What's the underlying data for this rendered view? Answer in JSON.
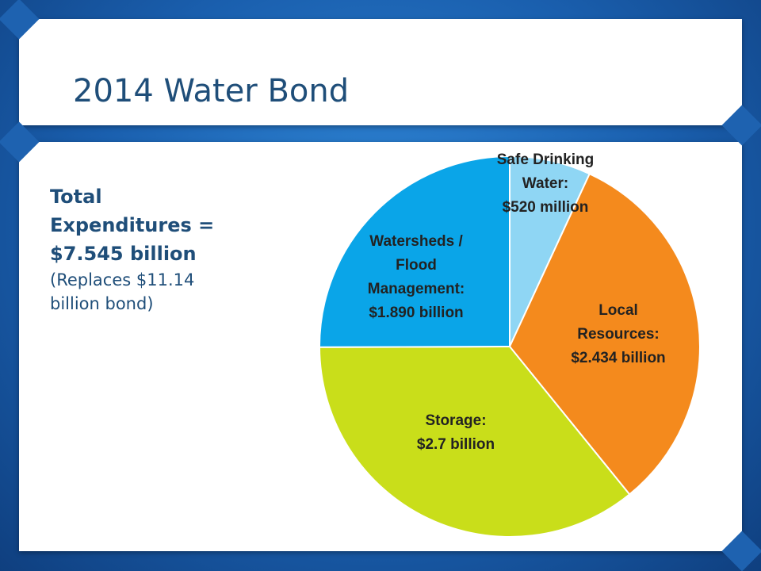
{
  "slide": {
    "title": "2014 Water Bond",
    "total_line1": "Total",
    "total_line2": "Expenditures =",
    "total_line3": "$7.545 billion",
    "note_line1": "(Replaces $11.14",
    "note_line2": "billion bond)"
  },
  "colors": {
    "background": "#1a5fae",
    "title": "#1f4e79",
    "safe_drinking_water": "#8fd6f4",
    "local_resources": "#f48a1d",
    "storage": "#c9de1a",
    "watersheds": "#0aa5e8"
  },
  "chart_data": {
    "type": "pie",
    "title": "",
    "slices": [
      {
        "name": "Safe Drinking Water",
        "value": 0.52,
        "label_lines": [
          "Safe Drinking",
          "Water:",
          "$520 million"
        ],
        "color": "#8fd6f4"
      },
      {
        "name": "Local Resources",
        "value": 2.434,
        "label_lines": [
          "Local",
          "Resources:",
          "$2.434 billion"
        ],
        "color": "#f48a1d"
      },
      {
        "name": "Storage",
        "value": 2.7,
        "label_lines": [
          "Storage:",
          "$2.7 billion"
        ],
        "color": "#c9de1a"
      },
      {
        "name": "Watersheds / Flood Management",
        "value": 1.89,
        "label_lines": [
          "Watersheds /",
          "Flood",
          "Management:",
          "$1.890 billion"
        ],
        "color": "#0aa5e8"
      }
    ],
    "legend": "none"
  }
}
